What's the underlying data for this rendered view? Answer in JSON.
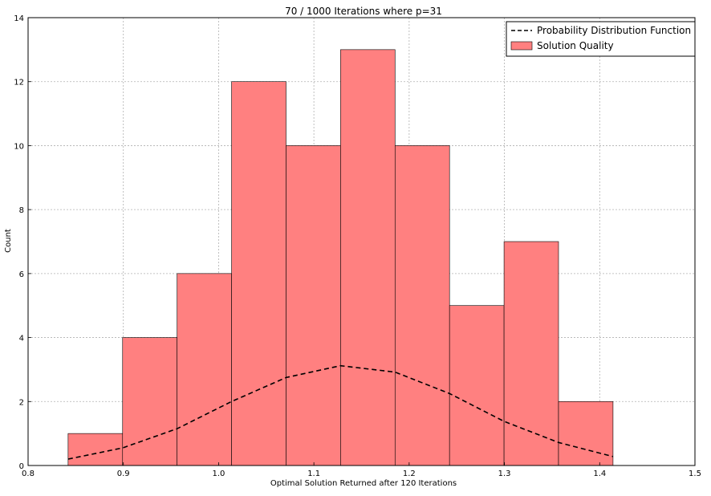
{
  "chart_data": {
    "type": "bar",
    "title": "70 / 1000 Iterations where p=31",
    "xlabel": "Optimal Solution Returned after 120 Iterations",
    "ylabel": "Count",
    "xlim": [
      0.8,
      1.5
    ],
    "ylim": [
      0,
      14
    ],
    "xticks": [
      "0.8",
      "0.9",
      "1.0",
      "1.1",
      "1.2",
      "1.3",
      "1.4",
      "1.5"
    ],
    "yticks": [
      "0",
      "2",
      "4",
      "6",
      "8",
      "10",
      "12",
      "14"
    ],
    "grid": true,
    "legend_position": "top-right",
    "histogram": {
      "name": "Solution Quality",
      "color": "#ff8080",
      "edge_color": "#000000",
      "bin_edges": [
        0.842,
        0.8992,
        0.9564,
        1.0136,
        1.0708,
        1.128,
        1.1852,
        1.2424,
        1.2996,
        1.3568,
        1.414
      ],
      "counts": [
        1,
        4,
        6,
        12,
        10,
        13,
        10,
        5,
        7,
        2
      ]
    },
    "pdf_line": {
      "name": "Probability Distribution Function",
      "color": "#000000",
      "style": "dashed",
      "x": [
        0.842,
        0.8992,
        0.9564,
        1.0136,
        1.0708,
        1.128,
        1.1852,
        1.2424,
        1.2996,
        1.3568,
        1.414
      ],
      "y": [
        0.2,
        0.55,
        1.15,
        2.0,
        2.75,
        3.12,
        2.92,
        2.25,
        1.38,
        0.72,
        0.28
      ]
    }
  }
}
